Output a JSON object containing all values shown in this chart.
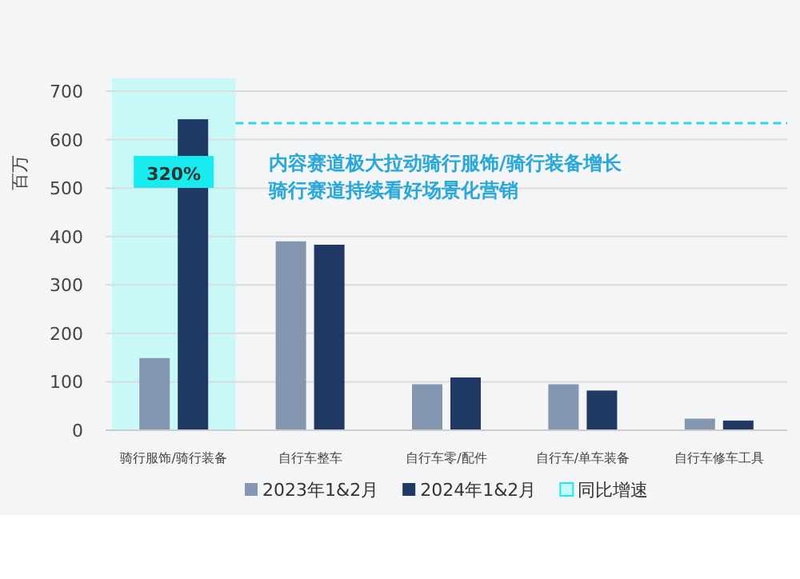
{
  "chart_data": {
    "type": "bar",
    "ylabel": "百万",
    "categories": [
      "骑行服饰/骑行装备",
      "自行车整车",
      "自行车零/配件",
      "自行车/单车装备",
      "自行车修车工具"
    ],
    "series": [
      {
        "name": "2023年1&2月",
        "color": "#8496b0",
        "values": [
          149,
          390,
          95,
          95,
          24
        ]
      },
      {
        "name": "2024年1&2月",
        "color": "#203864",
        "values": [
          642,
          383,
          109,
          82,
          20
        ]
      }
    ],
    "ylim": [
      0,
      700
    ],
    "yticks": [
      0,
      100,
      200,
      300,
      400,
      500,
      600,
      700
    ],
    "grid": "y",
    "legend": "bottom",
    "bands": [
      {
        "axis": "x",
        "from": "骑行服饰/骑行装备",
        "to": "骑行服饰/骑行装备",
        "label": "同比增速",
        "color": "#c8f8f8"
      }
    ],
    "ref_lines": [
      {
        "axis": "y",
        "value": 634,
        "color": "#33d6e0",
        "line_style": "dashed"
      }
    ],
    "annotations": [
      {
        "text": "320%",
        "x": "骑行服饰/骑行装备",
        "y": 530
      },
      "内容赛道极大拉动骑行服饰/骑行装备增长",
      "骑行赛道持续看好场景化营销"
    ]
  }
}
